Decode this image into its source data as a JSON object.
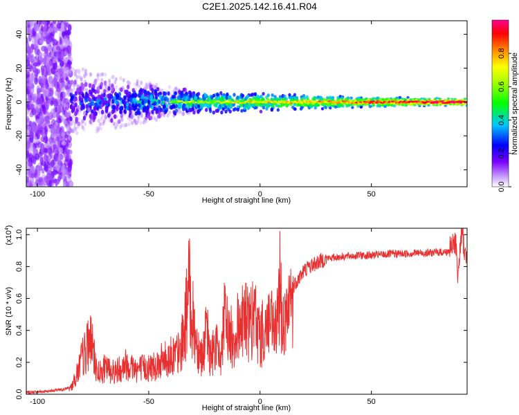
{
  "figure_title": "C2E1.2025.142.16.41.R04",
  "chart_data": [
    {
      "type": "heatmap",
      "xlabel": "Height of straight line (km)",
      "ylabel": "Frequency (Hz)",
      "xlim": [
        -105,
        93
      ],
      "ylim": [
        -50,
        48
      ],
      "x_ticks": [
        -100,
        -50,
        0,
        50
      ],
      "y_ticks": [
        -40,
        -20,
        0,
        20,
        40
      ],
      "colorbar": {
        "label": "Normalized spectral amplitude",
        "range": [
          0.0,
          1.0
        ],
        "ticks": [
          "0.0",
          "0.2",
          "0.4",
          "0.6",
          "0.8"
        ],
        "colors": [
          "#ffffff",
          "#7a00ff",
          "#0000ff",
          "#00ffff",
          "#00ff00",
          "#ffff00",
          "#ff8800",
          "#ff0000",
          "#ff0080"
        ]
      },
      "regions": [
        {
          "x_range": [
            -105,
            -85
          ],
          "freq_range": [
            -50,
            48
          ],
          "amplitude_max": 0.1
        },
        {
          "x_range": [
            -85,
            -40
          ],
          "freq_range": [
            -15,
            15
          ],
          "amplitude_max": 0.35
        },
        {
          "x_range": [
            -40,
            0
          ],
          "freq_range": [
            -5,
            5
          ],
          "amplitude_max": 0.7
        },
        {
          "x_range": [
            0,
            93
          ],
          "freq_range": [
            -3,
            3
          ],
          "amplitude_max": 0.95
        }
      ]
    },
    {
      "type": "line",
      "xlabel": "Height of straight line (km)",
      "ylabel": "SNR (10 * v/v)",
      "y_multiplier": "(x10",
      "y_multiplier_exp": "4",
      "y_multiplier_close": ")",
      "xlim": [
        -105,
        93
      ],
      "ylim": [
        0,
        1.04
      ],
      "x_ticks": [
        -100,
        -50,
        0,
        50
      ],
      "y_ticks": [
        0.0,
        0.2,
        0.4,
        0.6,
        0.8,
        1.0
      ],
      "line_color": "#e83030",
      "series": [
        {
          "x": [
            -105,
            -95,
            -88,
            -85,
            -83,
            -80,
            -78,
            -76,
            -74,
            -72,
            -70,
            -65,
            -60,
            -55,
            -50,
            -45,
            -40,
            -36,
            -34,
            -32,
            -31,
            -30,
            -28,
            -26,
            -24,
            -22,
            -20,
            -18,
            -16,
            -14,
            -12,
            -10,
            -8,
            -6,
            -4,
            -2,
            0,
            2,
            4,
            6,
            8,
            9,
            10,
            12,
            14,
            16,
            18,
            20,
            22,
            25,
            28,
            30,
            35,
            40,
            45,
            50,
            55,
            60,
            65,
            70,
            75,
            80,
            84,
            86,
            88,
            89,
            90,
            91,
            92,
            93
          ],
          "y": [
            0.01,
            0.02,
            0.03,
            0.05,
            0.12,
            0.28,
            0.36,
            0.44,
            0.22,
            0.17,
            0.2,
            0.18,
            0.24,
            0.2,
            0.21,
            0.25,
            0.3,
            0.32,
            0.5,
            0.82,
            0.7,
            0.55,
            0.38,
            0.3,
            0.48,
            0.28,
            0.42,
            0.25,
            0.58,
            0.48,
            0.42,
            0.52,
            0.63,
            0.58,
            0.55,
            0.6,
            0.44,
            0.5,
            0.58,
            0.48,
            0.54,
            0.95,
            0.52,
            0.6,
            0.66,
            0.7,
            0.74,
            0.78,
            0.8,
            0.82,
            0.84,
            0.85,
            0.86,
            0.865,
            0.87,
            0.87,
            0.875,
            0.88,
            0.88,
            0.885,
            0.885,
            0.89,
            0.89,
            0.92,
            0.95,
            0.72,
            0.96,
            1.0,
            0.86,
            0.88
          ]
        }
      ]
    }
  ]
}
